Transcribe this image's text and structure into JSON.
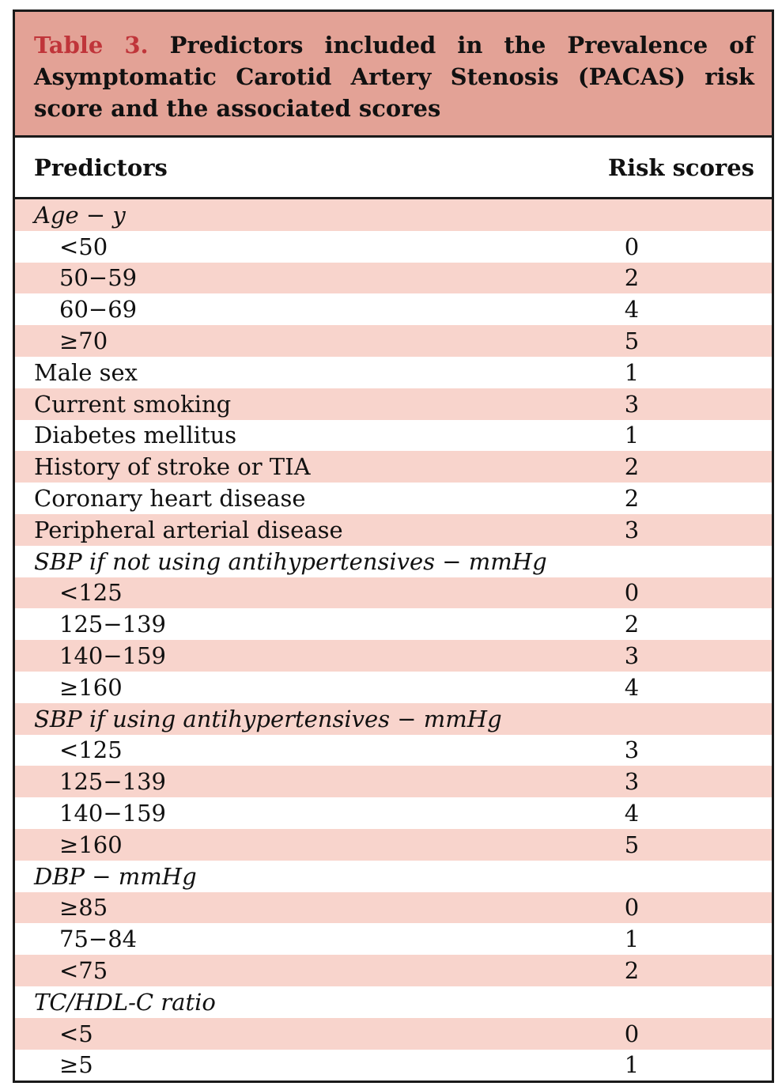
{
  "caption": {
    "label": "Table 3.",
    "text": " Predictors included in the Prevalence of Asymptomatic Carotid Artery Stenosis (PACAS) risk score and the associated scores"
  },
  "header": {
    "predictors": "Predictors",
    "risk_scores": "Risk scores"
  },
  "rows": [
    {
      "predictor": "Age − y",
      "score": "",
      "kind": "group"
    },
    {
      "predictor": "<50",
      "score": "0",
      "kind": "indent"
    },
    {
      "predictor": "50−59",
      "score": "2",
      "kind": "indent"
    },
    {
      "predictor": "60−69",
      "score": "4",
      "kind": "indent"
    },
    {
      "predictor": "≥70",
      "score": "5",
      "kind": "indent"
    },
    {
      "predictor": "Male sex",
      "score": "1",
      "kind": "plain"
    },
    {
      "predictor": "Current smoking",
      "score": "3",
      "kind": "plain"
    },
    {
      "predictor": "Diabetes mellitus",
      "score": "1",
      "kind": "plain"
    },
    {
      "predictor": "History of stroke or TIA",
      "score": "2",
      "kind": "plain"
    },
    {
      "predictor": "Coronary heart disease",
      "score": "2",
      "kind": "plain"
    },
    {
      "predictor": "Peripheral arterial disease",
      "score": "3",
      "kind": "plain"
    },
    {
      "predictor": "SBP if not using antihypertensives − mmHg",
      "score": "",
      "kind": "group"
    },
    {
      "predictor": "<125",
      "score": "0",
      "kind": "indent"
    },
    {
      "predictor": "125−139",
      "score": "2",
      "kind": "indent"
    },
    {
      "predictor": "140−159",
      "score": "3",
      "kind": "indent"
    },
    {
      "predictor": "≥160",
      "score": "4",
      "kind": "indent"
    },
    {
      "predictor": "SBP if using antihypertensives − mmHg",
      "score": "",
      "kind": "group"
    },
    {
      "predictor": "<125",
      "score": "3",
      "kind": "indent"
    },
    {
      "predictor": "125−139",
      "score": "3",
      "kind": "indent"
    },
    {
      "predictor": "140−159",
      "score": "4",
      "kind": "indent"
    },
    {
      "predictor": "≥160",
      "score": "5",
      "kind": "indent"
    },
    {
      "predictor": "DBP − mmHg",
      "score": "",
      "kind": "group"
    },
    {
      "predictor": "≥85",
      "score": "0",
      "kind": "indent"
    },
    {
      "predictor": "75−84",
      "score": "1",
      "kind": "indent"
    },
    {
      "predictor": "<75",
      "score": "2",
      "kind": "indent"
    },
    {
      "predictor": "TC/HDL-C ratio",
      "score": "",
      "kind": "group"
    },
    {
      "predictor": "<5",
      "score": "0",
      "kind": "indent"
    },
    {
      "predictor": "≥5",
      "score": "1",
      "kind": "indent"
    }
  ],
  "colors": {
    "caption_bg": "#e3a296",
    "caption_label": "#c0353a",
    "row_shade": "#f8d4cc",
    "border": "#1a1a1a"
  }
}
